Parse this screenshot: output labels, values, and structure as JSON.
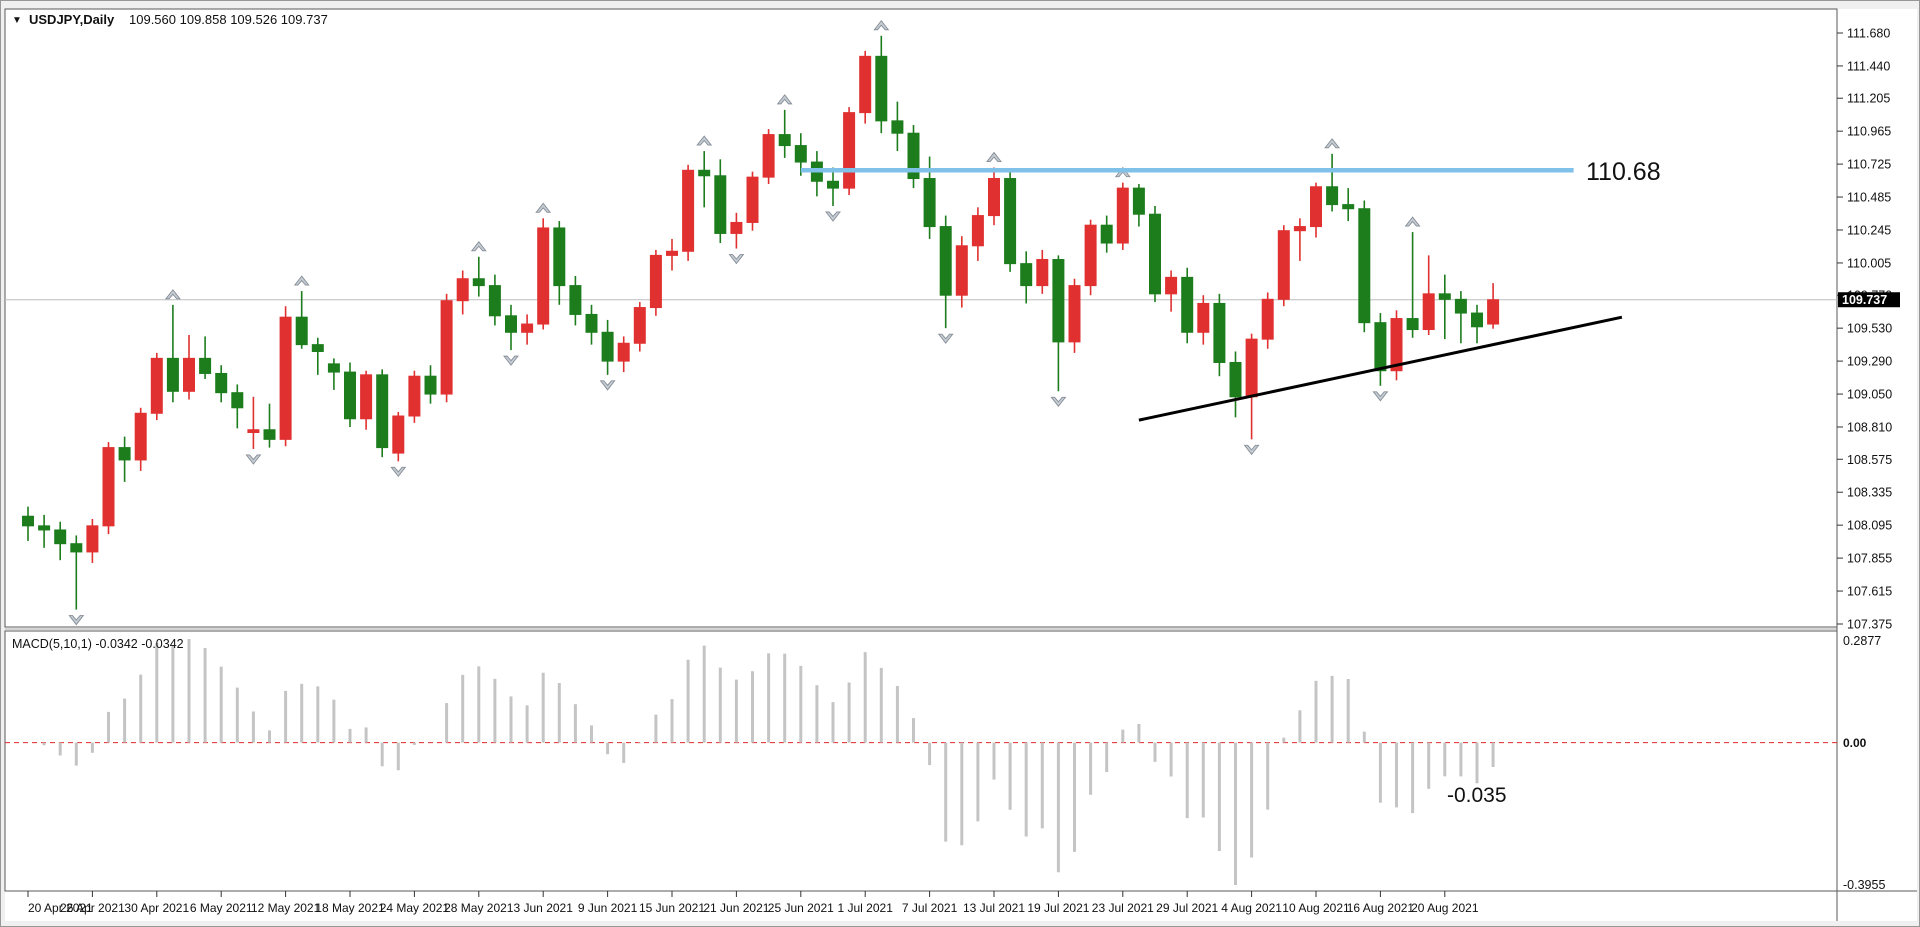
{
  "header": {
    "dropdown_icon": "expand-symbol-triangle",
    "symbol": "USDJPY,Daily",
    "ohlc": "109.560 109.858 109.526 109.737"
  },
  "colors": {
    "bull_candle": "#e03030",
    "bear_candle": "#1d7d1d",
    "resistance_line": "#7fc1e8",
    "trendline": "#000000",
    "current_price_line": "#bdbdbd",
    "badge_bg": "#000000",
    "badge_text": "#ffffff",
    "annotation_red": "#ff0000",
    "macd_bar": "#c4c4c4",
    "macd_zero_line": "#e32a2a",
    "fractal_fill": "#c6ccd3",
    "fractal_stroke": "#858d96",
    "pane_border": "#5a5a5a",
    "background": "#ffffff"
  },
  "chart_data": {
    "type": "candlestick",
    "symbol": "USDJPY",
    "timeframe": "Daily",
    "title": "USDJPY,Daily",
    "ylim": [
      107.375,
      111.68
    ],
    "grid": false,
    "price_ticks": [
      "111.680",
      "111.440",
      "111.205",
      "110.965",
      "110.725",
      "110.485",
      "110.245",
      "110.005",
      "109.770",
      "109.530",
      "109.290",
      "109.050",
      "108.810",
      "108.575",
      "108.335",
      "108.095",
      "107.855",
      "107.615",
      "107.375"
    ],
    "current_price": "109.737",
    "tick_interval": 4,
    "tick_dates": [
      "20 Apr 2021",
      "26 Apr 2021",
      "30 Apr 2021",
      "6 May 2021",
      "12 May 2021",
      "18 May 2021",
      "24 May 2021",
      "28 May 2021",
      "3 Jun 2021",
      "9 Jun 2021",
      "15 Jun 2021",
      "21 Jun 2021",
      "25 Jun 2021",
      "1 Jul 2021",
      "7 Jul 2021",
      "13 Jul 2021",
      "19 Jul 2021",
      "23 Jul 2021",
      "29 Jul 2021",
      "4 Aug 2021",
      "10 Aug 2021",
      "16 Aug 2021",
      "20 Aug 2021"
    ],
    "ohlc": [
      [
        108.16,
        108.23,
        107.98,
        108.09
      ],
      [
        108.09,
        108.17,
        107.93,
        108.06
      ],
      [
        108.06,
        108.12,
        107.84,
        107.96
      ],
      [
        107.96,
        108.02,
        107.48,
        107.9
      ],
      [
        107.9,
        108.14,
        107.82,
        108.09
      ],
      [
        108.09,
        108.7,
        108.03,
        108.66
      ],
      [
        108.66,
        108.74,
        108.41,
        108.57
      ],
      [
        108.57,
        108.95,
        108.49,
        108.91
      ],
      [
        108.91,
        109.35,
        108.86,
        109.31
      ],
      [
        109.31,
        109.7,
        108.99,
        109.07
      ],
      [
        109.07,
        109.48,
        109.01,
        109.31
      ],
      [
        109.31,
        109.47,
        109.16,
        109.2
      ],
      [
        109.2,
        109.26,
        108.99,
        109.06
      ],
      [
        109.06,
        109.12,
        108.8,
        108.95
      ],
      [
        108.77,
        109.03,
        108.65,
        108.79
      ],
      [
        108.79,
        108.98,
        108.66,
        108.72
      ],
      [
        108.72,
        109.69,
        108.67,
        109.61
      ],
      [
        109.61,
        109.8,
        109.38,
        109.41
      ],
      [
        109.41,
        109.46,
        109.19,
        109.36
      ],
      [
        109.27,
        109.31,
        109.08,
        109.21
      ],
      [
        109.21,
        109.28,
        108.81,
        108.87
      ],
      [
        108.87,
        109.22,
        108.79,
        109.19
      ],
      [
        109.19,
        109.23,
        108.59,
        108.66
      ],
      [
        108.62,
        108.92,
        108.56,
        108.89
      ],
      [
        108.89,
        109.22,
        108.84,
        109.18
      ],
      [
        109.18,
        109.26,
        108.98,
        109.05
      ],
      [
        109.05,
        109.78,
        108.99,
        109.73
      ],
      [
        109.73,
        109.95,
        109.63,
        109.89
      ],
      [
        109.89,
        110.05,
        109.76,
        109.84
      ],
      [
        109.84,
        109.92,
        109.55,
        109.62
      ],
      [
        109.62,
        109.7,
        109.37,
        109.5
      ],
      [
        109.5,
        109.63,
        109.41,
        109.56
      ],
      [
        109.56,
        110.33,
        109.52,
        110.26
      ],
      [
        110.26,
        110.31,
        109.7,
        109.84
      ],
      [
        109.84,
        109.91,
        109.55,
        109.63
      ],
      [
        109.63,
        109.7,
        109.41,
        109.5
      ],
      [
        109.5,
        109.59,
        109.19,
        109.29
      ],
      [
        109.29,
        109.47,
        109.21,
        109.42
      ],
      [
        109.42,
        109.72,
        109.36,
        109.68
      ],
      [
        109.68,
        110.1,
        109.62,
        110.06
      ],
      [
        110.06,
        110.18,
        109.95,
        110.09
      ],
      [
        110.09,
        110.72,
        110.02,
        110.68
      ],
      [
        110.68,
        110.82,
        110.41,
        110.64
      ],
      [
        110.64,
        110.76,
        110.15,
        110.22
      ],
      [
        110.22,
        110.37,
        110.11,
        110.3
      ],
      [
        110.3,
        110.67,
        110.24,
        110.63
      ],
      [
        110.63,
        110.98,
        110.58,
        110.94
      ],
      [
        110.94,
        111.12,
        110.77,
        110.86
      ],
      [
        110.86,
        110.95,
        110.64,
        110.74
      ],
      [
        110.74,
        110.82,
        110.49,
        110.6
      ],
      [
        110.6,
        110.7,
        110.42,
        110.55
      ],
      [
        110.55,
        111.14,
        110.5,
        111.1
      ],
      [
        111.1,
        111.55,
        111.02,
        111.51
      ],
      [
        111.51,
        111.66,
        110.95,
        111.04
      ],
      [
        111.04,
        111.18,
        110.82,
        110.95
      ],
      [
        110.95,
        111.01,
        110.55,
        110.62
      ],
      [
        110.62,
        110.78,
        110.18,
        110.27
      ],
      [
        110.27,
        110.35,
        109.53,
        109.77
      ],
      [
        109.77,
        110.2,
        109.68,
        110.13
      ],
      [
        110.13,
        110.41,
        110.02,
        110.35
      ],
      [
        110.35,
        110.7,
        110.28,
        110.62
      ],
      [
        110.62,
        110.69,
        109.94,
        110.0
      ],
      [
        110.0,
        110.09,
        109.71,
        109.84
      ],
      [
        109.84,
        110.1,
        109.78,
        110.03
      ],
      [
        110.03,
        110.06,
        109.07,
        109.43
      ],
      [
        109.43,
        109.89,
        109.35,
        109.84
      ],
      [
        109.84,
        110.32,
        109.77,
        110.28
      ],
      [
        110.28,
        110.35,
        110.08,
        110.15
      ],
      [
        110.15,
        110.59,
        110.1,
        110.55
      ],
      [
        110.55,
        110.58,
        110.27,
        110.36
      ],
      [
        110.36,
        110.42,
        109.72,
        109.78
      ],
      [
        109.78,
        109.95,
        109.65,
        109.9
      ],
      [
        109.9,
        109.97,
        109.42,
        109.5
      ],
      [
        109.5,
        109.77,
        109.41,
        109.71
      ],
      [
        109.71,
        109.78,
        109.18,
        109.28
      ],
      [
        109.28,
        109.36,
        108.88,
        109.03
      ],
      [
        109.03,
        109.49,
        108.72,
        109.45
      ],
      [
        109.45,
        109.79,
        109.38,
        109.74
      ],
      [
        109.74,
        110.28,
        109.69,
        110.24
      ],
      [
        110.24,
        110.33,
        110.02,
        110.27
      ],
      [
        110.27,
        110.59,
        110.19,
        110.56
      ],
      [
        110.56,
        110.8,
        110.38,
        110.43
      ],
      [
        110.43,
        110.55,
        110.31,
        110.4
      ],
      [
        110.4,
        110.46,
        109.5,
        109.57
      ],
      [
        109.57,
        109.64,
        109.11,
        109.22
      ],
      [
        109.22,
        109.66,
        109.15,
        109.6
      ],
      [
        109.6,
        110.23,
        109.46,
        109.52
      ],
      [
        109.52,
        110.06,
        109.48,
        109.78
      ],
      [
        109.78,
        109.92,
        109.45,
        109.74
      ],
      [
        109.74,
        109.8,
        109.42,
        109.64
      ],
      [
        109.64,
        109.7,
        109.42,
        109.54
      ],
      [
        109.56,
        109.858,
        109.526,
        109.737
      ]
    ],
    "annotations": {
      "resistance": {
        "label": "110.68",
        "price": 110.68,
        "x1_index": 48,
        "x2_index": 96
      },
      "trendline": {
        "x1_index": 69,
        "y1_price": 108.86,
        "x2_index": 99,
        "y2_price": 109.61
      },
      "macd_note": {
        "label": "-0.035"
      }
    },
    "macd": {
      "label": "MACD(5,10,1) -0.0342 -0.0342",
      "fast": 5,
      "slow": 10,
      "signal": 1,
      "max_label": "0.2877",
      "zero_label": "0.00",
      "min_label": "-0.3955",
      "ylim": [
        -0.3955,
        0.2877
      ]
    }
  }
}
